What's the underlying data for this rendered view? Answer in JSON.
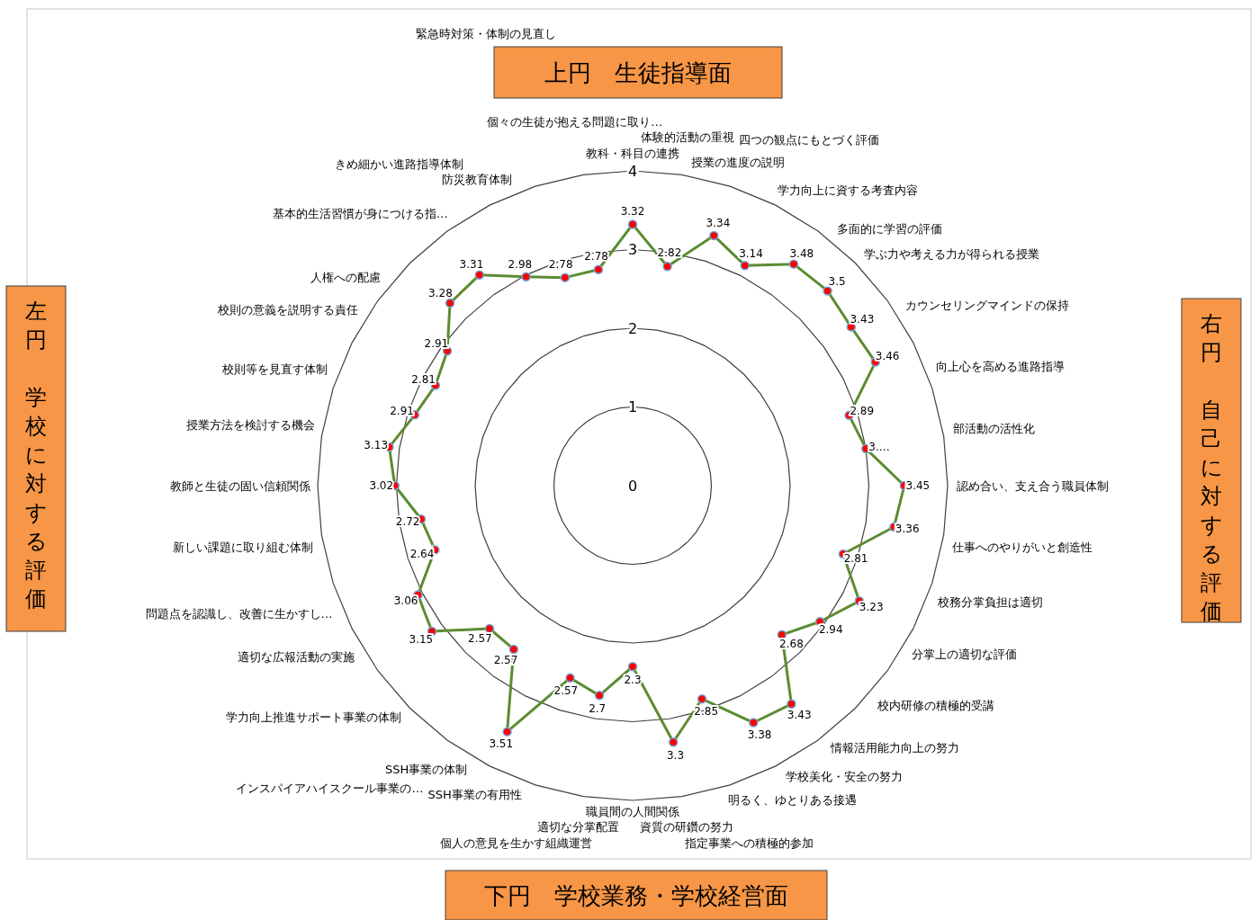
{
  "chart_data": {
    "type": "radar",
    "categories": [
      "教科・科目の連携",
      "体験的活動の重視",
      "授業の進度の説明",
      "四つの観点にもとづく評価",
      "学力向上に資する考査内容",
      "多面的に学習の評価",
      "学ぶ力や考える力が得られる授業",
      "カウンセリングマインドの保持",
      "向上心を高める進路指導",
      "部活動の活性化",
      "認め合い、支え合う職員体制",
      "仕事へのやりがいと創造性",
      "校務分掌負担は適切",
      "分掌上の適切な評価",
      "校内研修の積極的受講",
      "情報活用能力向上の努力",
      "学校美化・安全の努力",
      "明るく、ゆとりある接遇",
      "指定事業への積極的参加",
      "資質の研鑽の努力",
      "職員間の人間関係",
      "適切な分掌配置",
      "個人の意見を生かす組織運営",
      "SSH事業の有用性",
      "SSH事業の体制",
      "インスパイアハイスクール事業の…",
      "学力向上推進サポート事業の体制",
      "適切な広報活動の実施",
      "問題点を認識し、改善に生かすし…",
      "新しい課題に取り組む体制",
      "教師と生徒の固い信頼関係",
      "授業方法を検討する機会",
      "校則等を見直す体制",
      "校則の意義を説明する責任",
      "人権への配慮",
      "基本的生活習慣が身につける指…",
      "きめ細かい進路指導体制",
      "防災教育体制",
      "緊急時対策・体制の見直し",
      "個々の生徒が抱える問題に取り…"
    ],
    "series": [
      {
        "color": "#5b8c32",
        "values": [
          3.32,
          2.82,
          3.34,
          3.14,
          3.48,
          3.5,
          3.43,
          3.46,
          2.89,
          3.0,
          3.45,
          3.36,
          2.81,
          3.23,
          2.94,
          2.68,
          3.43,
          3.38,
          2.85,
          3.3,
          2.3,
          2.7,
          2.57,
          3.51,
          2.57,
          2.57,
          3.15,
          3.06,
          2.64,
          2.72,
          3.02,
          3.13,
          2.91,
          2.81,
          2.91,
          3.28,
          3.31,
          2.98,
          2.78,
          2.78
        ],
        "value_labels": [
          "3.32",
          "2.82",
          "3.34",
          "3.14",
          "3.48",
          "3.5",
          "3.43",
          "3.46",
          "2.89",
          "3.…",
          "3.45",
          "3.36",
          "2.81",
          "3.23",
          "2.94",
          "2.68",
          "3.43",
          "3.38",
          "2.85",
          "3.3",
          "2.3",
          "2.7",
          "2.57",
          "3.51",
          "2.57",
          "2.57",
          "3.15",
          "3.06",
          "2.64",
          "2.72",
          "3.02",
          "3.13",
          "2.91",
          "2.81",
          "2.91",
          "3.28",
          "3.31",
          "2.98",
          "2.78",
          "2.78"
        ]
      }
    ],
    "ylim": [
      0,
      4
    ],
    "yticks": [
      0,
      1,
      2,
      3,
      4
    ],
    "grid": true,
    "marker": "circle",
    "annotations": [
      "上円　生徒指導面",
      "左円",
      "学校に対する評価",
      "右円",
      "自己に対する評価",
      "下円　学校業務・学校経営面"
    ]
  }
}
